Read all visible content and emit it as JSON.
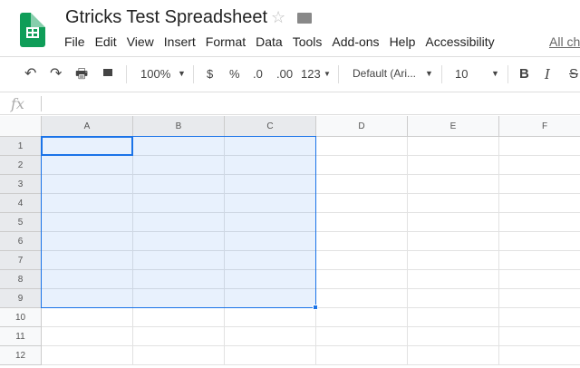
{
  "app": {
    "title": "Gtricks Test Spreadsheet",
    "star_icon": "star-icon",
    "folder_icon": "folder-icon"
  },
  "menu": [
    "File",
    "Edit",
    "View",
    "Insert",
    "Format",
    "Data",
    "Tools",
    "Add-ons",
    "Help",
    "Accessibility"
  ],
  "all_changes": "All ch",
  "toolbar": {
    "zoom": "100%",
    "currency": "$",
    "percent": "%",
    "dec_decrease": ".0",
    "dec_increase": ".00",
    "format_more": "123",
    "font": "Default (Ari...",
    "font_size": "10",
    "bold": "B",
    "italic": "I",
    "strike": "S"
  },
  "formula": {
    "fx": "fx",
    "value": ""
  },
  "columns": [
    "A",
    "B",
    "C",
    "D",
    "E",
    "F"
  ],
  "rows": [
    "1",
    "2",
    "3",
    "4",
    "5",
    "6",
    "7",
    "8",
    "9",
    "10",
    "11",
    "12"
  ],
  "selection": {
    "range": "A1:C9",
    "active_cell": "A1"
  },
  "colors": {
    "accent": "#1a73e8",
    "sheets_green": "#0f9d58"
  }
}
